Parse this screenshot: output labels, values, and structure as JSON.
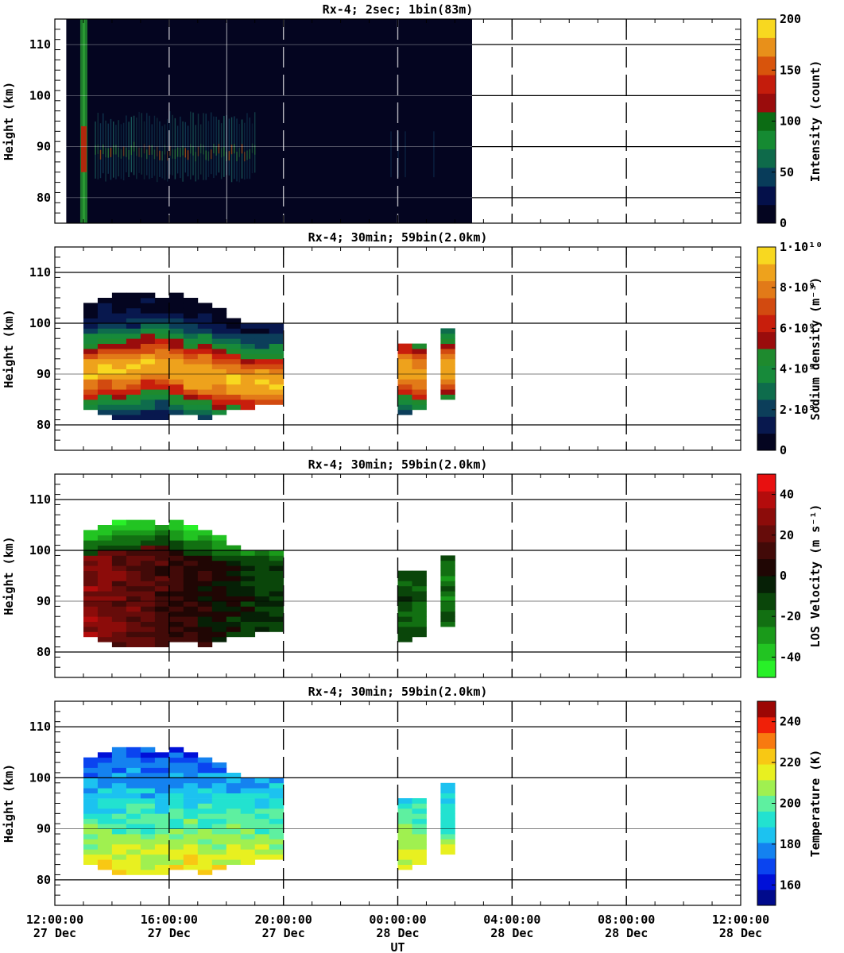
{
  "chart_data": {
    "type": "heatmap",
    "x_axis": {
      "label": "UT",
      "range": [
        "12:00:00 27 Dec",
        "12:00:00 28 Dec"
      ],
      "tick_hours": [
        0,
        4,
        8,
        12,
        16,
        20,
        24
      ],
      "tick_time_labels": [
        "12:00:00",
        "16:00:00",
        "20:00:00",
        "00:00:00",
        "04:00:00",
        "08:00:00",
        "12:00:00"
      ],
      "tick_date_labels": [
        "27 Dec",
        "27 Dec",
        "27 Dec",
        "28 Dec",
        "28 Dec",
        "28 Dec",
        "28 Dec"
      ]
    },
    "y_axis": {
      "label": "Height (km)",
      "range": [
        75,
        115
      ],
      "ticks": [
        80,
        90,
        100,
        110
      ],
      "tick_labels": [
        "80",
        "90",
        "100",
        "110"
      ]
    },
    "panels": [
      {
        "title": "Rx-4;  2sec; 1bin(83m)",
        "colorbar": {
          "label": "Intensity (count)",
          "range": [
            0,
            200
          ],
          "ticks": [
            0,
            50,
            100,
            150,
            200
          ],
          "tick_labels": [
            "0",
            "50",
            "100",
            "150",
            "200"
          ],
          "colors": [
            "#040520",
            "#04104a",
            "#083c5a",
            "#0e6a4a",
            "#158a32",
            "#0c6c14",
            "#9a0c0c",
            "#c41c0c",
            "#d8540c",
            "#e8901a",
            "#f8d820"
          ]
        },
        "observation_window_hours": [
          0.4,
          14.6
        ],
        "laser_flash_hours": 1.0,
        "layer_peak_km": 89,
        "layer_bottom_km": 85,
        "layer_top_km": 94
      },
      {
        "title": "Rx-4; 30min; 59bin(2.0km)",
        "colorbar": {
          "label": "Sodium density (m⁻³)",
          "range": [
            0,
            10000000000
          ],
          "ticks": [
            0,
            2000000000,
            4000000000,
            6000000000,
            8000000000,
            10000000000
          ],
          "tick_labels": [
            "0",
            "2·10⁹",
            "4·10⁹",
            "6·10⁹",
            "8·10⁹",
            "1·10¹⁰"
          ],
          "colors": [
            "#040520",
            "#08184e",
            "#0c3e5a",
            "#0e6c4c",
            "#178a3a",
            "#1e8a2e",
            "#9a0c0c",
            "#c81e0c",
            "#d24a10",
            "#e27a18",
            "#eea21c",
            "#f8d820"
          ]
        },
        "profile_hours": [
          1.0,
          1.5,
          2.0,
          2.5,
          3.0,
          3.5,
          4.0,
          4.5,
          5.0,
          5.5,
          6.0,
          6.5,
          7.0,
          7.5,
          12.0,
          12.5,
          13.5
        ],
        "profile_bottom_km": [
          83,
          82,
          81,
          81,
          81,
          81,
          82,
          82,
          81,
          82,
          83,
          83,
          84,
          84,
          82,
          83,
          85
        ],
        "profile_top_km": [
          104,
          105,
          106,
          106,
          106,
          105,
          106,
          105,
          104,
          103,
          101,
          100,
          100,
          100,
          96,
          96,
          99
        ],
        "profile_peak_km": [
          90,
          91,
          91,
          91,
          92,
          92,
          91,
          90,
          90,
          89,
          89,
          88,
          88,
          88,
          91,
          90,
          91
        ]
      },
      {
        "title": "Rx-4; 30min; 59bin(2.0km)",
        "colorbar": {
          "label": "LOS Velocity (m s⁻¹)",
          "range": [
            -50,
            50
          ],
          "ticks": [
            -40,
            -20,
            0,
            20,
            40
          ],
          "tick_labels": [
            "-40",
            "-20",
            "0",
            "20",
            "40"
          ],
          "colors": [
            "#28f028",
            "#22c422",
            "#1a9a1a",
            "#127012",
            "#0a460a",
            "#062006",
            "#200604",
            "#420a08",
            "#660c0a",
            "#8c0c0a",
            "#b40c0c",
            "#e81010"
          ]
        }
      },
      {
        "title": "Rx-4; 30min; 59bin(2.0km)",
        "colorbar": {
          "label": "Temperature (K)",
          "range": [
            150,
            250
          ],
          "ticks": [
            160,
            180,
            200,
            220,
            240
          ],
          "tick_labels": [
            "160",
            "180",
            "200",
            "220",
            "240"
          ],
          "colors": [
            "#000a8c",
            "#0010d8",
            "#0a44f0",
            "#1482f0",
            "#1cc2f0",
            "#22e2d0",
            "#5ef0a0",
            "#a0f050",
            "#e8f020",
            "#f8c814",
            "#f87a10",
            "#f02008",
            "#9c0604"
          ]
        }
      }
    ]
  }
}
